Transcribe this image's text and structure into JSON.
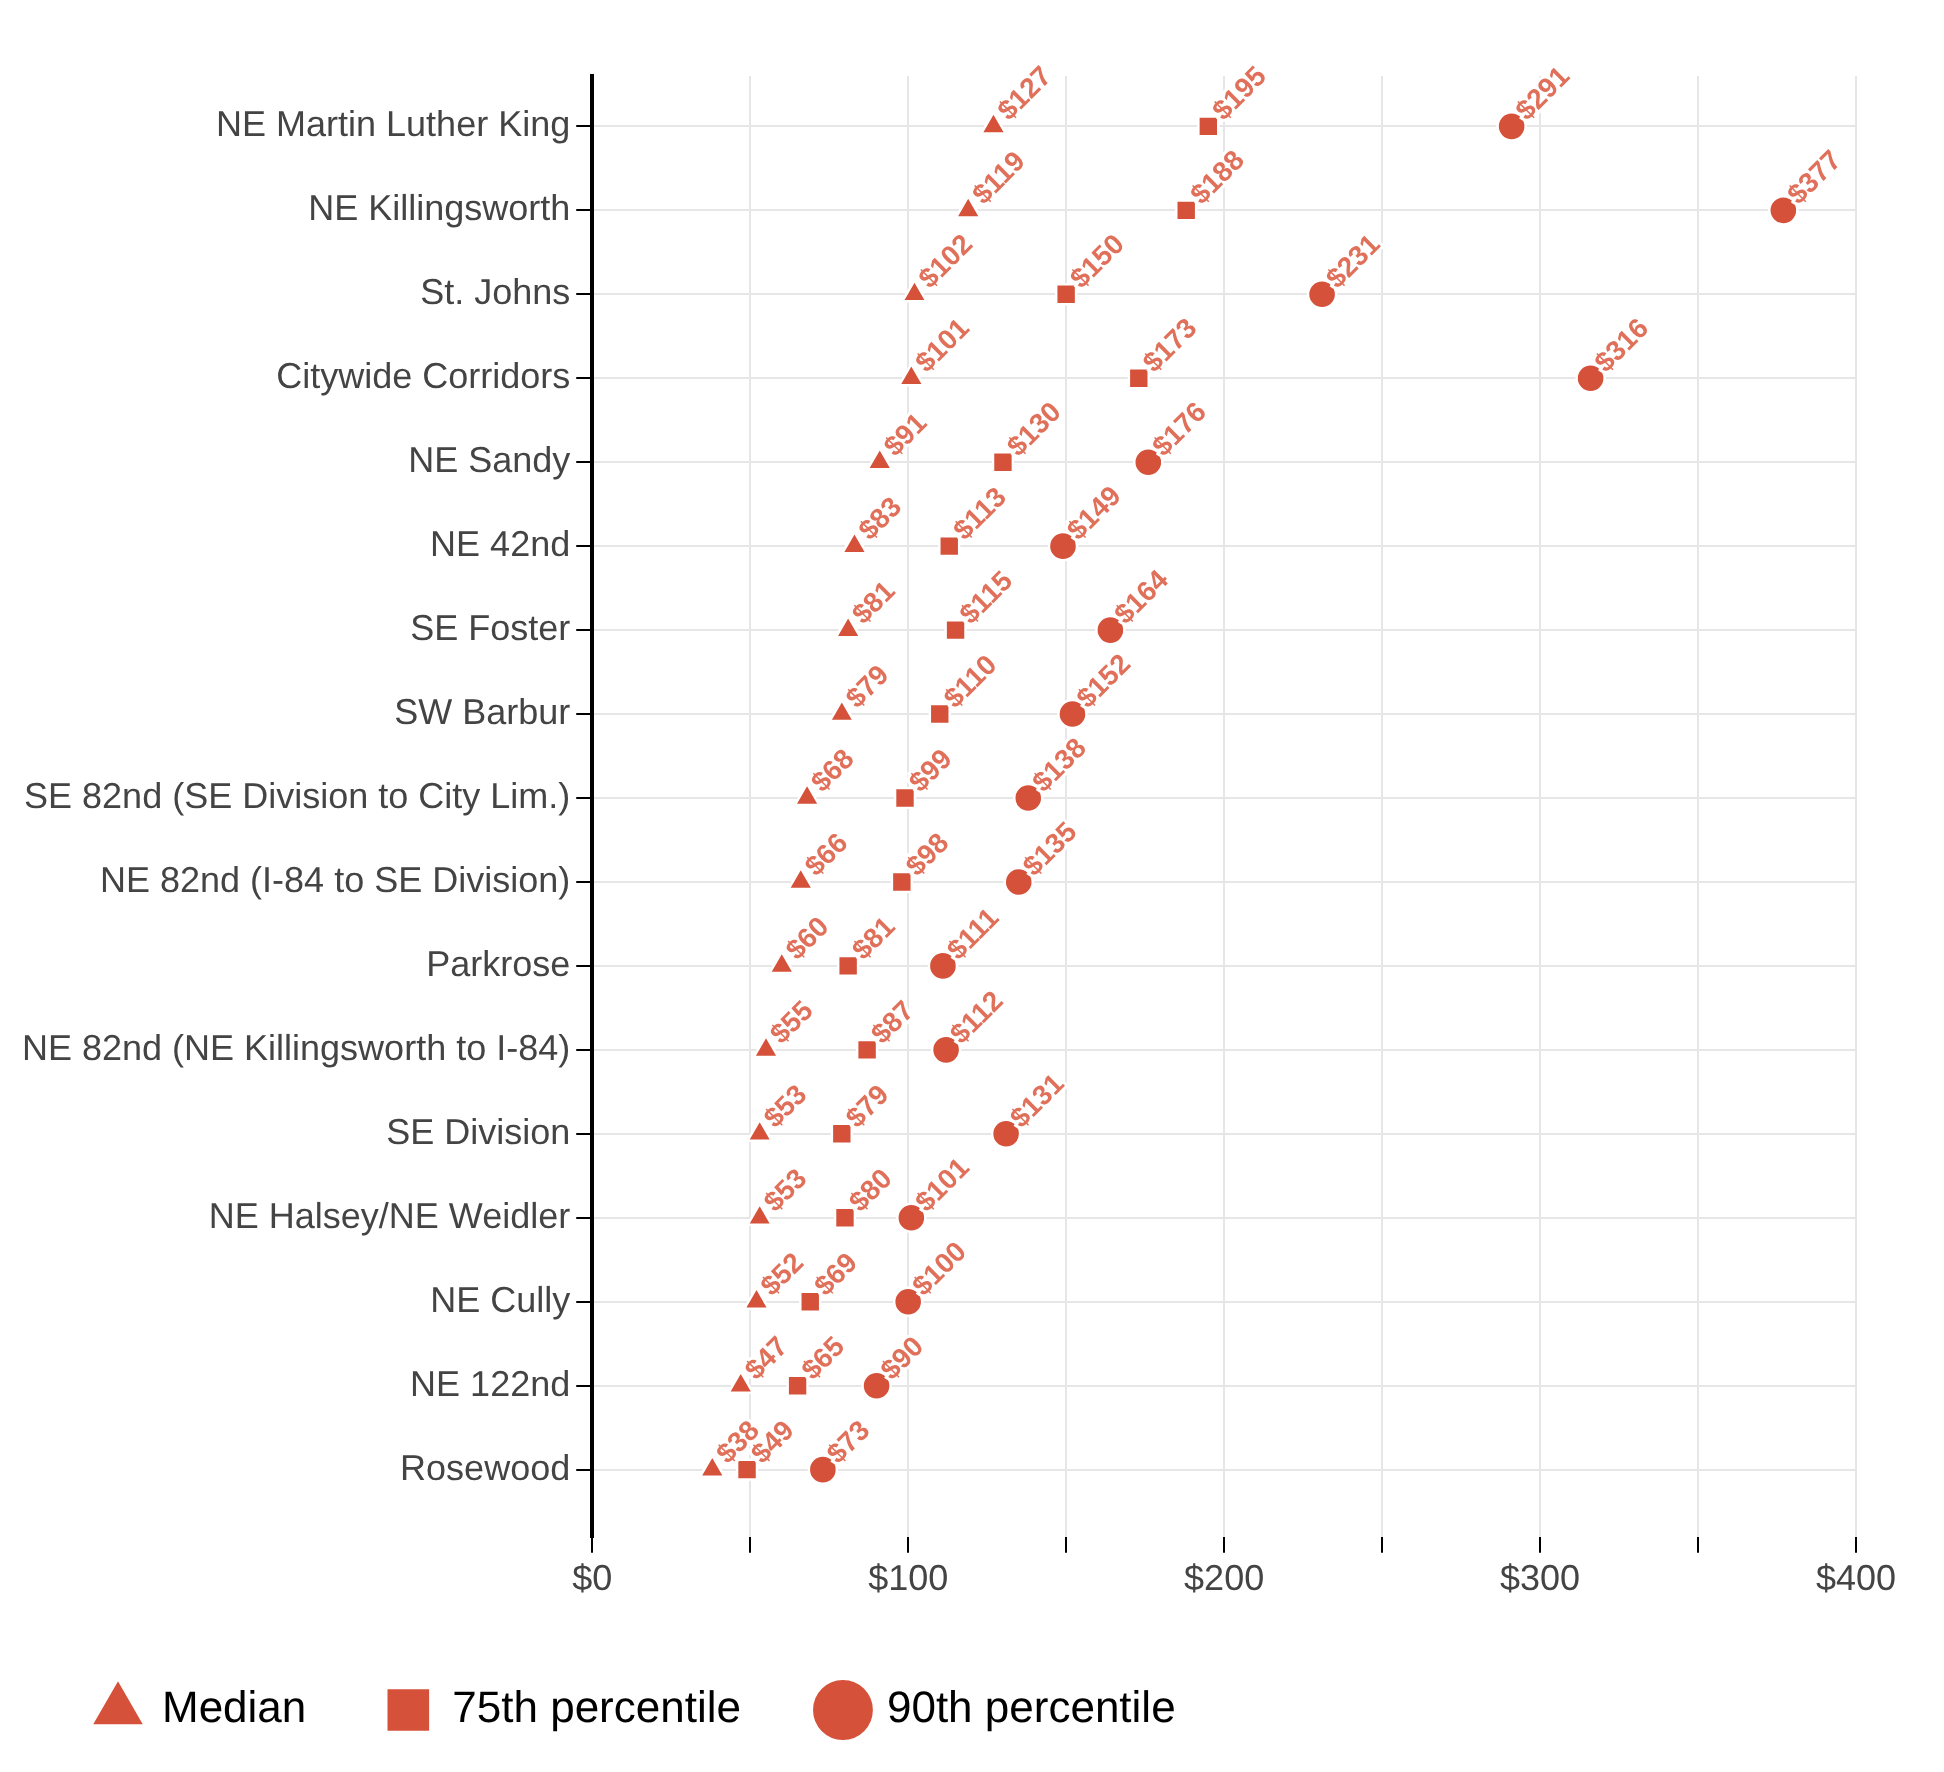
{
  "chart_data": {
    "type": "scatter",
    "orientation": "horizontal",
    "categories": [
      "NE Martin Luther King",
      "NE Killingsworth",
      "St. Johns",
      "Citywide Corridors",
      "NE Sandy",
      "NE 42nd",
      "SE Foster",
      "SW Barbur",
      "SE 82nd (SE Division to City Lim.)",
      "NE 82nd (I-84 to SE Division)",
      "Parkrose",
      "NE 82nd (NE Killingsworth to I-84)",
      "SE Division",
      "NE Halsey/NE Weidler",
      "NE Cully",
      "NE 122nd",
      "Rosewood"
    ],
    "xlim": [
      0,
      400
    ],
    "xticks": [
      {
        "value": 0,
        "label": "$0"
      },
      {
        "value": 50,
        "label": null
      },
      {
        "value": 100,
        "label": "$100"
      },
      {
        "value": 150,
        "label": null
      },
      {
        "value": 200,
        "label": "$200"
      },
      {
        "value": 250,
        "label": null
      },
      {
        "value": 300,
        "label": "$300"
      },
      {
        "value": 350,
        "label": null
      },
      {
        "value": 400,
        "label": "$400"
      }
    ],
    "grid": true,
    "legend": "bottom left",
    "series": [
      {
        "name": "Median",
        "color": "#d5513a",
        "marker": "triangle",
        "values": [
          127,
          119,
          102,
          101,
          91,
          83,
          81,
          79,
          68,
          66,
          60,
          55,
          53,
          53,
          52,
          47,
          38
        ],
        "value_labels": [
          "$127",
          "$119",
          "$102",
          "$101",
          "$91",
          "$83",
          "$81",
          "$79",
          "$68",
          "$66",
          "$60",
          "$55",
          "$53",
          "$53",
          "$52",
          "$47",
          "$38"
        ]
      },
      {
        "name": "75th percentile",
        "color": "#d5513a",
        "marker": "square",
        "values": [
          195,
          188,
          150,
          173,
          130,
          113,
          115,
          110,
          99,
          98,
          81,
          87,
          79,
          80,
          69,
          65,
          49
        ],
        "value_labels": [
          "$195",
          "$188",
          "$150",
          "$173",
          "$130",
          "$113",
          "$115",
          "$110",
          "$99",
          "$98",
          "$81",
          "$87",
          "$79",
          "$80",
          "$69",
          "$65",
          "$49"
        ]
      },
      {
        "name": "90th percentile",
        "color": "#d5513a",
        "marker": "circle",
        "values": [
          291,
          377,
          231,
          316,
          176,
          149,
          164,
          152,
          138,
          135,
          111,
          112,
          131,
          101,
          100,
          90,
          73
        ],
        "value_labels": [
          "$291",
          "$377",
          "$231",
          "$316",
          "$176",
          "$149",
          "$164",
          "$152",
          "$138",
          "$135",
          "$111",
          "$112",
          "$131",
          "$101",
          "$100",
          "$90",
          "$73"
        ]
      }
    ]
  }
}
